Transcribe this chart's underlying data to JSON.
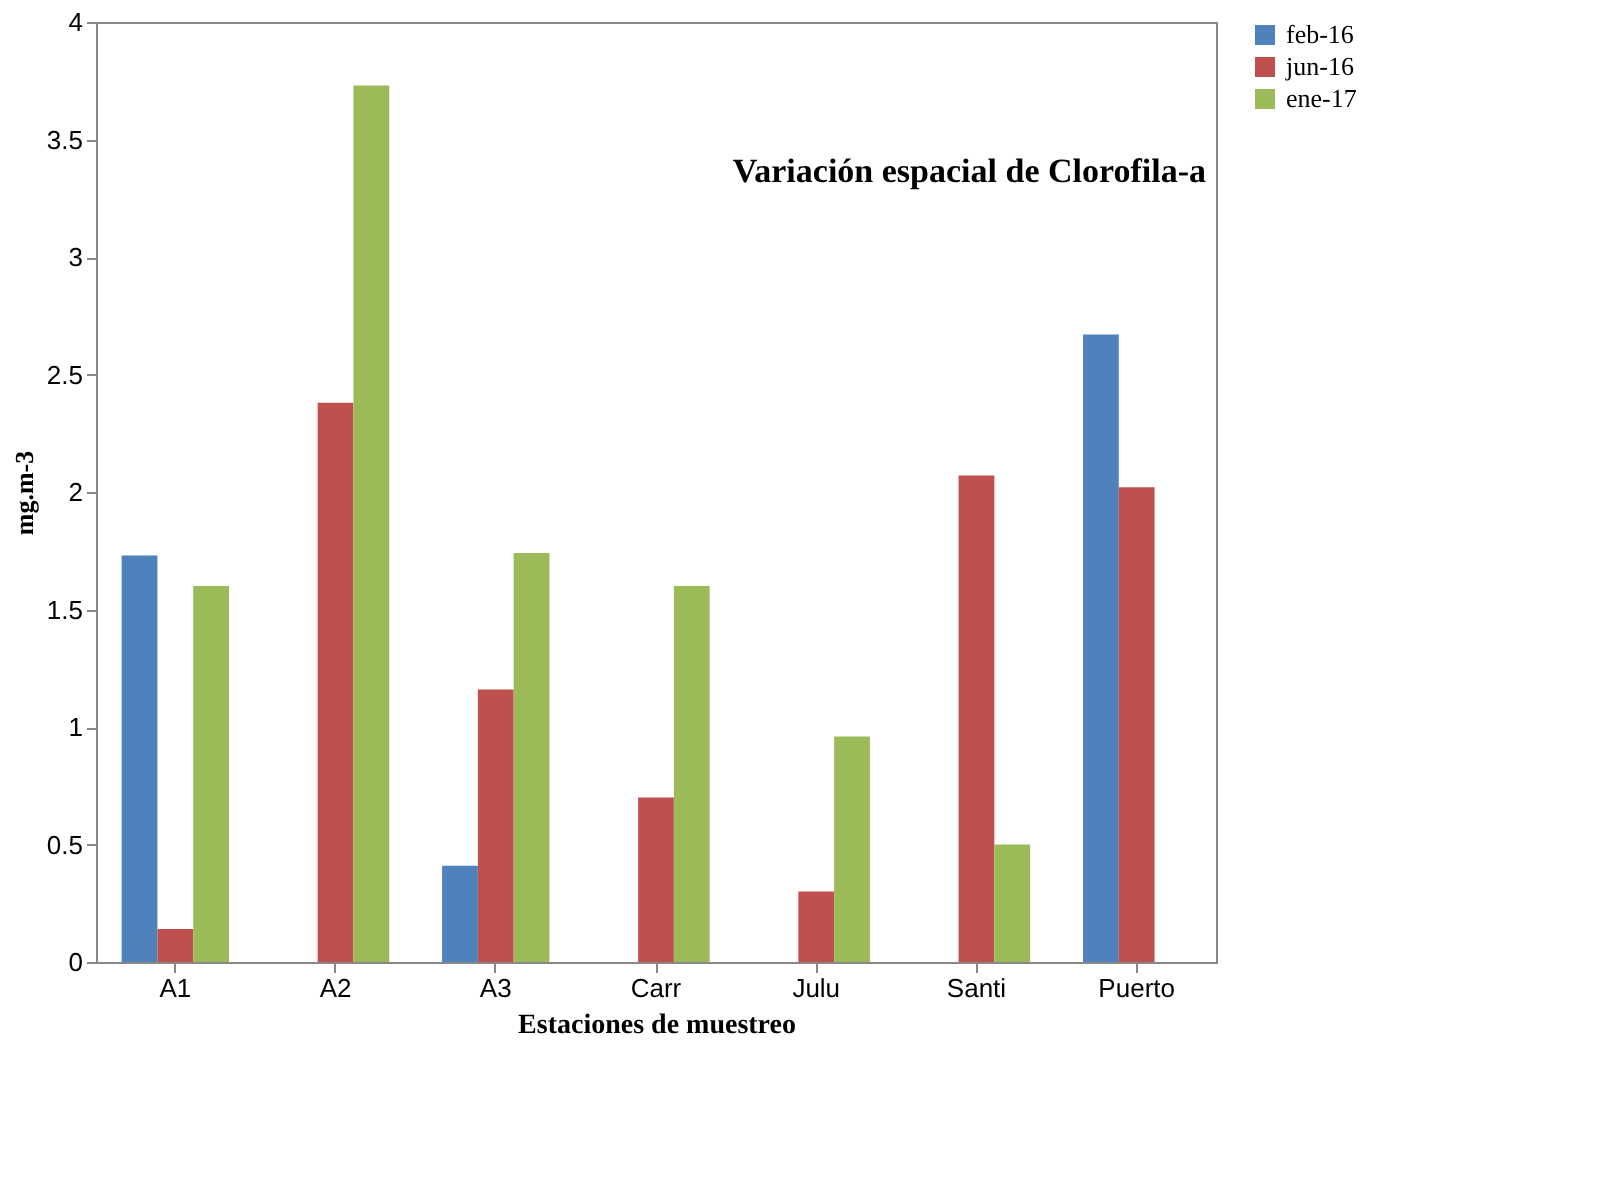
{
  "chart_data": {
    "type": "bar",
    "title": "Variación espacial de Clorofila-a",
    "xlabel": "Estaciones de muestreo",
    "ylabel": "mg.m-3",
    "categories": [
      "A1",
      "A2",
      "A3",
      "Carr",
      "Julu",
      "Santi",
      "Puerto"
    ],
    "series": [
      {
        "name": "feb-16",
        "color": "#4f81bd",
        "values": [
          1.73,
          null,
          0.41,
          null,
          null,
          null,
          2.67
        ]
      },
      {
        "name": "jun-16",
        "color": "#c0504d",
        "values": [
          0.14,
          2.38,
          1.16,
          0.7,
          0.3,
          2.07,
          2.02
        ]
      },
      {
        "name": "ene-17",
        "color": "#9bbb59",
        "values": [
          1.6,
          3.73,
          1.74,
          1.6,
          0.96,
          0.5,
          null
        ]
      }
    ],
    "ylim": [
      0,
      4
    ],
    "yticks": [
      0,
      0.5,
      1,
      1.5,
      2,
      2.5,
      3,
      3.5,
      4
    ],
    "grid": false,
    "legend": "right"
  }
}
